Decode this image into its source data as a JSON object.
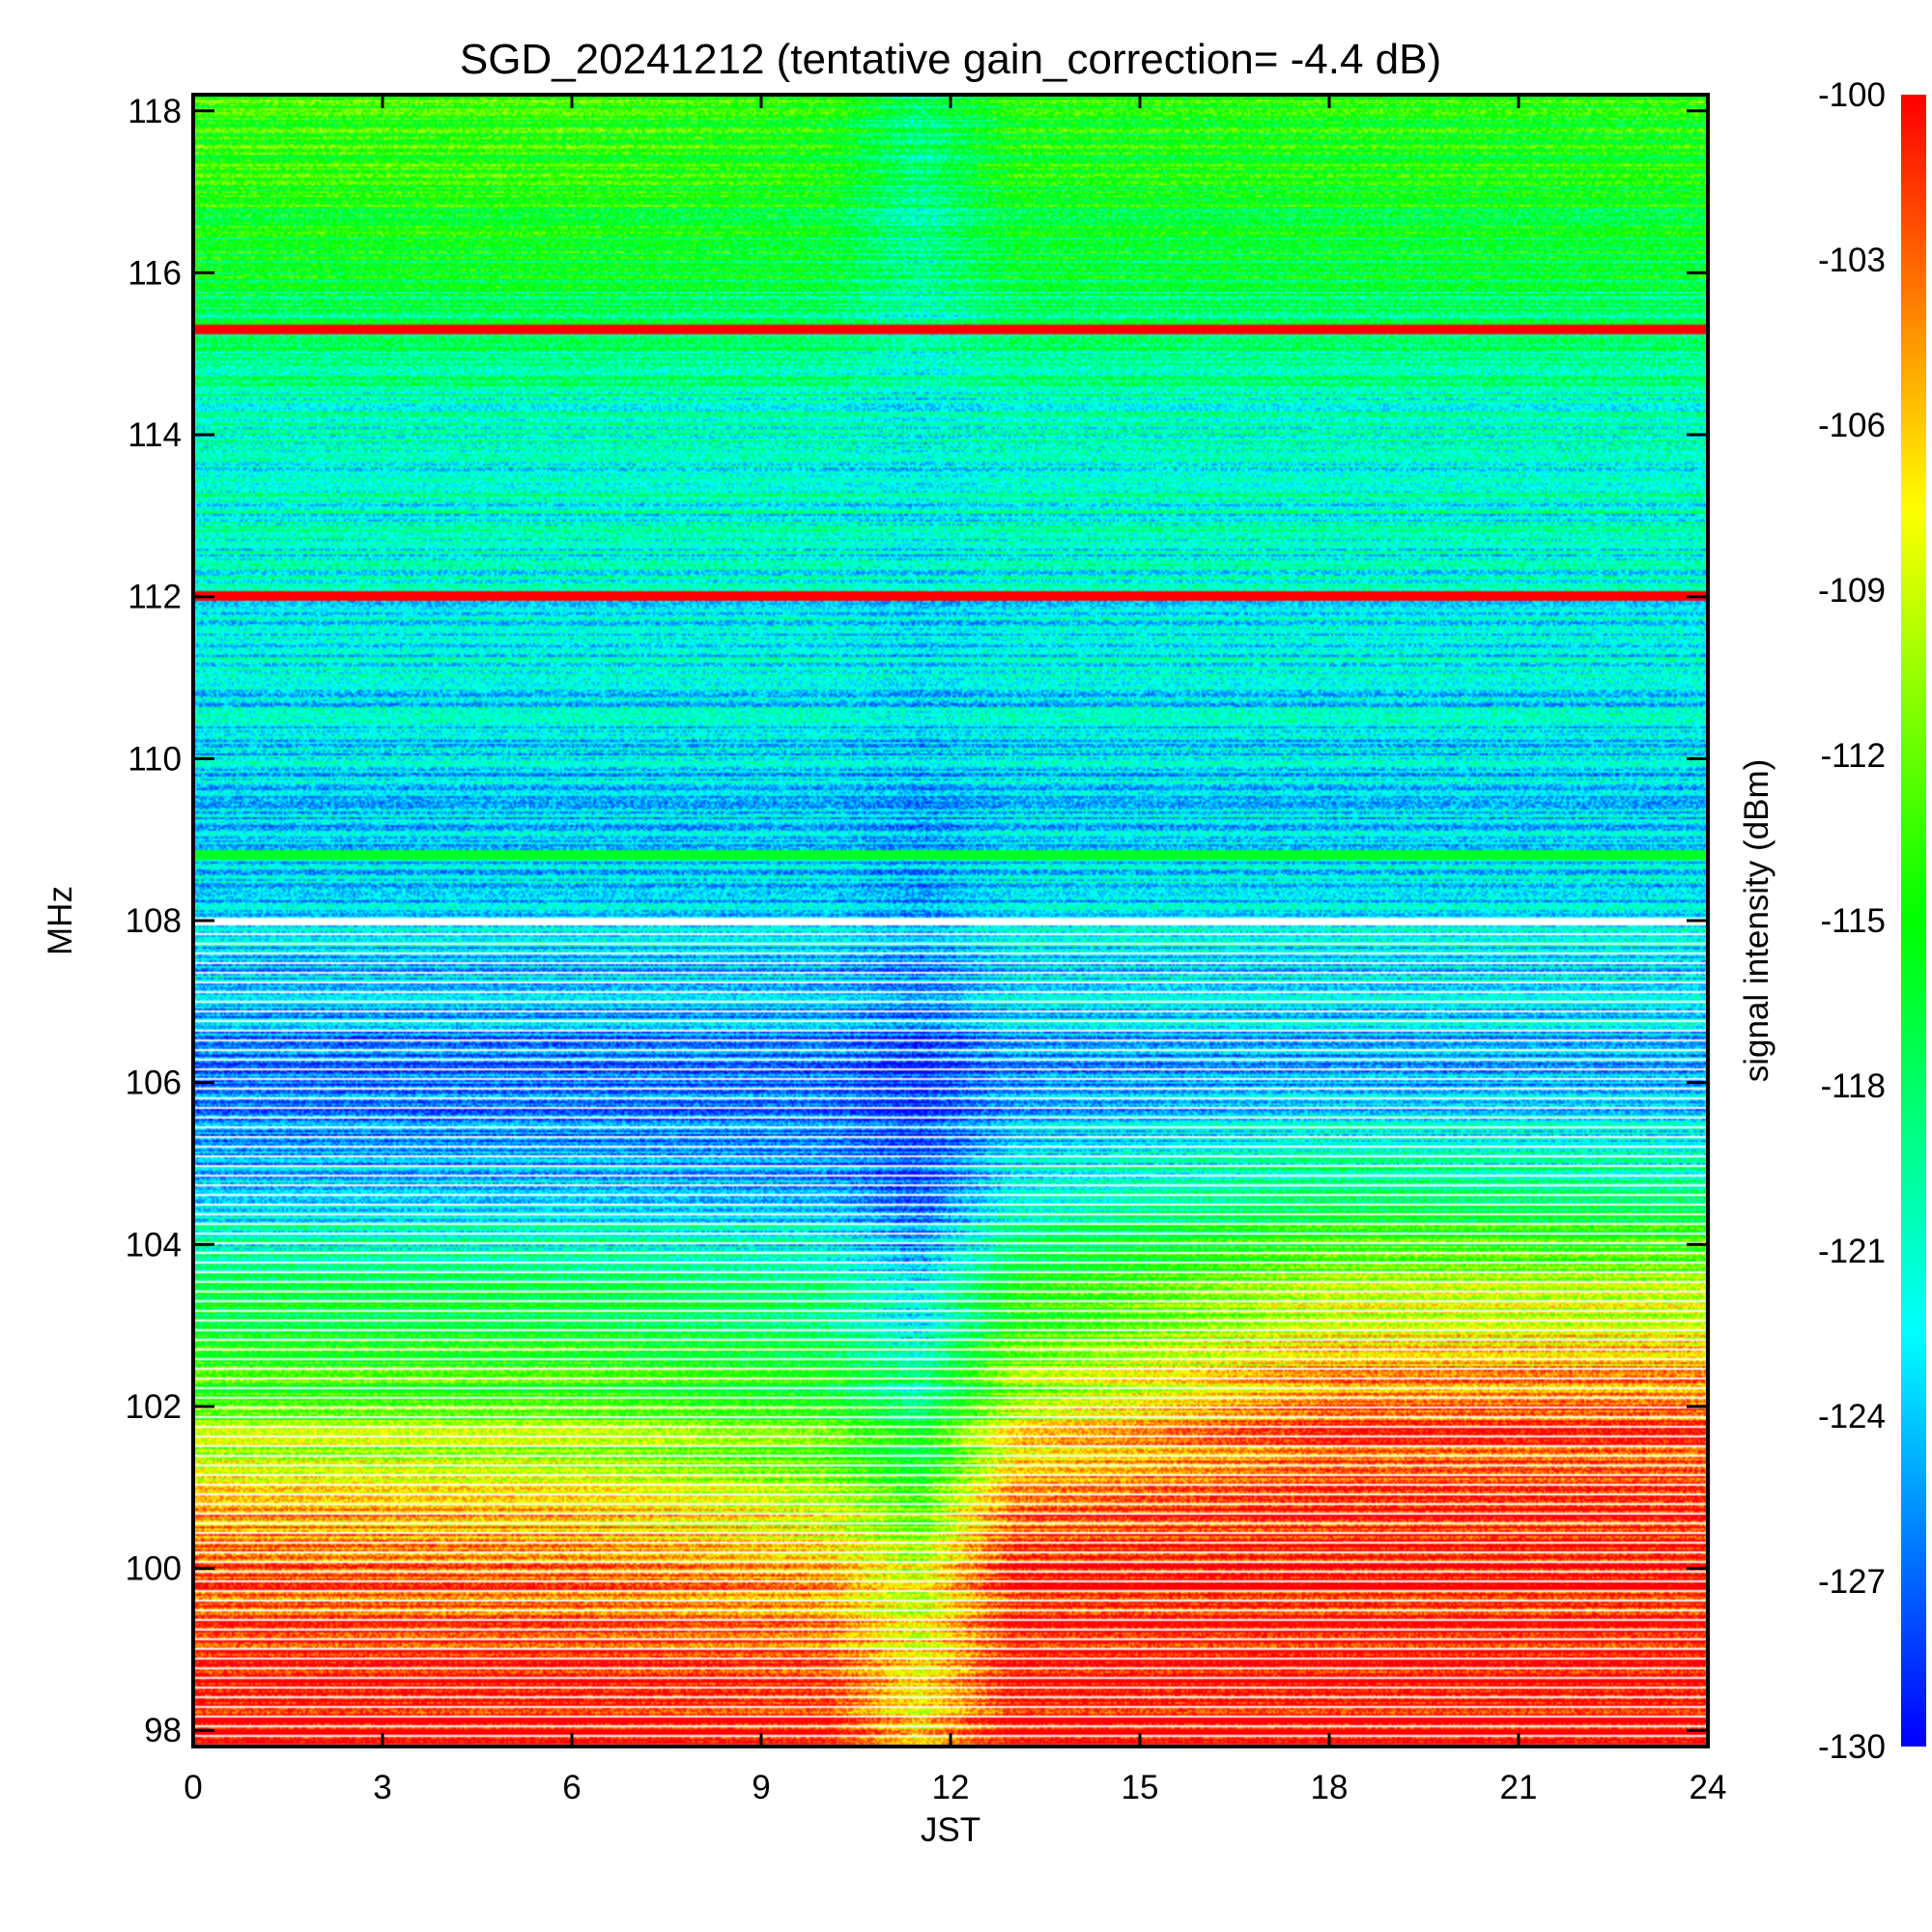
{
  "chart_data": {
    "type": "heatmap",
    "title": "SGD_20241212 (tentative gain_correction= -4.4 dB)",
    "xlabel": "JST",
    "ylabel": "MHz",
    "xlim": [
      0,
      24
    ],
    "ylim": [
      97.8,
      118.2
    ],
    "x_ticks": [
      "0",
      "3",
      "6",
      "9",
      "12",
      "15",
      "18",
      "21",
      "24"
    ],
    "y_ticks": [
      "98",
      "100",
      "102",
      "104",
      "106",
      "108",
      "110",
      "112",
      "114",
      "116",
      "118"
    ],
    "colorbar": {
      "label": "signal intensity (dBm)",
      "range": [
        -130,
        -100
      ],
      "ticks": [
        "-100",
        "-103",
        "-106",
        "-109",
        "-112",
        "-115",
        "-118",
        "-121",
        "-124",
        "-127",
        "-130"
      ],
      "colormap": "rainbow (blue-cyan-green-yellow-red)"
    },
    "grid": false,
    "constant_lines": [
      {
        "freq_mhz": 115.3,
        "level_dbm": -100
      },
      {
        "freq_mhz": 112.0,
        "level_dbm": -100
      },
      {
        "freq_mhz": 108.8,
        "level_dbm": -116
      }
    ],
    "approx_levels_dbm": {
      "jst_hours": [
        0,
        6,
        10,
        11.5,
        13,
        18,
        24
      ],
      "bands": [
        {
          "freq_mhz": 98.5,
          "values": [
            -100,
            -100,
            -101,
            -107,
            -100,
            -100,
            -100
          ]
        },
        {
          "freq_mhz": 100,
          "values": [
            -102,
            -103,
            -105,
            -109,
            -100,
            -100,
            -100
          ]
        },
        {
          "freq_mhz": 101,
          "values": [
            -106,
            -107,
            -110,
            -114,
            -104,
            -101,
            -101
          ]
        },
        {
          "freq_mhz": 102,
          "values": [
            -113,
            -113,
            -115,
            -119,
            -110,
            -103,
            -103
          ]
        },
        {
          "freq_mhz": 103,
          "values": [
            -116,
            -116,
            -118,
            -122,
            -114,
            -108,
            -108
          ]
        },
        {
          "freq_mhz": 104,
          "values": [
            -121,
            -121,
            -122,
            -126,
            -119,
            -114,
            -114
          ]
        },
        {
          "freq_mhz": 105,
          "values": [
            -125,
            -125,
            -126,
            -128,
            -123,
            -120,
            -121
          ]
        },
        {
          "freq_mhz": 106,
          "values": [
            -127,
            -127,
            -127,
            -129,
            -126,
            -125,
            -125
          ]
        },
        {
          "freq_mhz": 107,
          "values": [
            -124,
            -124,
            -124,
            -126,
            -123,
            -123,
            -123
          ]
        },
        {
          "freq_mhz": 110,
          "values": [
            -123,
            -123,
            -123,
            -124,
            -123,
            -123,
            -123
          ]
        },
        {
          "freq_mhz": 114,
          "values": [
            -121,
            -121,
            -121,
            -122,
            -121,
            -121,
            -121
          ]
        },
        {
          "freq_mhz": 117,
          "values": [
            -114,
            -114,
            -115,
            -119,
            -115,
            -115,
            -115
          ]
        }
      ]
    }
  }
}
